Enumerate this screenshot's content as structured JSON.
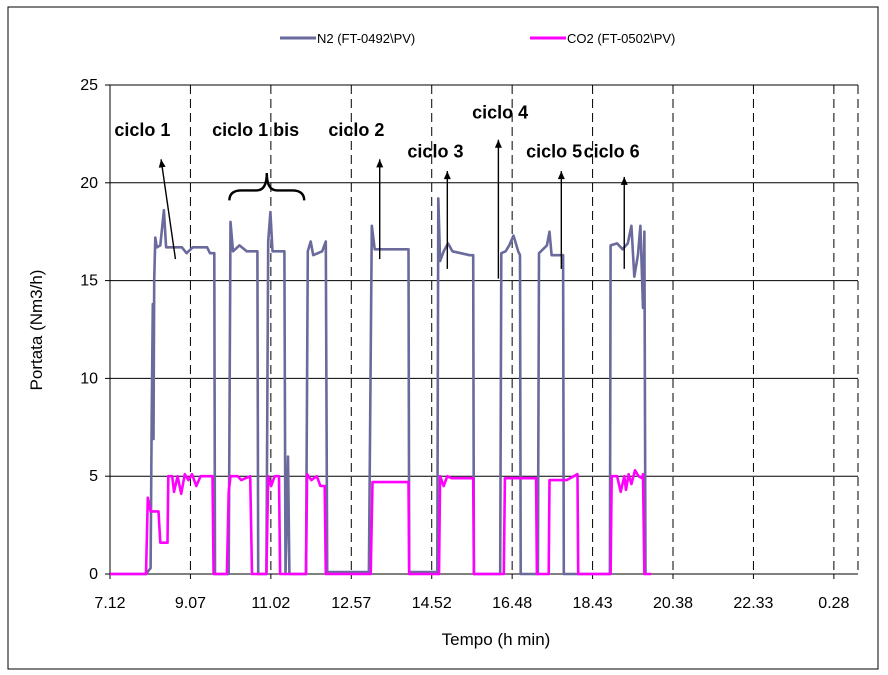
{
  "chart_data": {
    "type": "line",
    "xlabel": "Tempo (h min)",
    "ylabel": "Portata (Nm3/h)",
    "ylim": [
      0,
      25
    ],
    "xlim": [
      7.2,
      28.0
    ],
    "y_ticks": [
      0,
      5,
      10,
      15,
      20,
      25
    ],
    "x_ticks": [
      "7.12",
      "9.07",
      "11.02",
      "12.57",
      "14.52",
      "16.48",
      "18.43",
      "20.38",
      "22.33",
      "0.28"
    ],
    "grid": true,
    "legend_position": "top",
    "series": [
      {
        "name": "N2 (FT-0492\\PV)",
        "color": "#6a6a9c",
        "points": [
          [
            7.2,
            0
          ],
          [
            8.2,
            0
          ],
          [
            8.33,
            0.3
          ],
          [
            8.36,
            8
          ],
          [
            8.39,
            13.8
          ],
          [
            8.41,
            6.9
          ],
          [
            8.43,
            15
          ],
          [
            8.46,
            17.2
          ],
          [
            8.5,
            16.7
          ],
          [
            8.6,
            16.8
          ],
          [
            8.7,
            18.6
          ],
          [
            8.76,
            16.7
          ],
          [
            9.2,
            16.7
          ],
          [
            9.33,
            16.4
          ],
          [
            9.5,
            16.7
          ],
          [
            9.9,
            16.7
          ],
          [
            9.98,
            16.4
          ],
          [
            10.1,
            16.4
          ],
          [
            10.12,
            0
          ],
          [
            10.5,
            0
          ],
          [
            10.55,
            18
          ],
          [
            10.62,
            16.5
          ],
          [
            10.8,
            16.8
          ],
          [
            11.0,
            16.5
          ],
          [
            11.3,
            16.5
          ],
          [
            11.32,
            0
          ],
          [
            11.55,
            0
          ],
          [
            11.6,
            17
          ],
          [
            11.66,
            18.5
          ],
          [
            11.72,
            16.5
          ],
          [
            12.05,
            16.5
          ],
          [
            12.08,
            0
          ],
          [
            12.15,
            6
          ],
          [
            12.19,
            0
          ],
          [
            12.65,
            0
          ],
          [
            12.7,
            16.5
          ],
          [
            12.78,
            17
          ],
          [
            12.85,
            16.3
          ],
          [
            13.1,
            16.5
          ],
          [
            13.2,
            17
          ],
          [
            13.24,
            0.1
          ],
          [
            14.4,
            0.1
          ],
          [
            14.48,
            17.8
          ],
          [
            14.56,
            16.6
          ],
          [
            15.5,
            16.6
          ],
          [
            15.52,
            0.1
          ],
          [
            16.3,
            0.1
          ],
          [
            16.33,
            19.2
          ],
          [
            16.38,
            16.0
          ],
          [
            16.48,
            16.5
          ],
          [
            16.6,
            16.9
          ],
          [
            16.72,
            16.5
          ],
          [
            17.2,
            16.3
          ],
          [
            17.3,
            16.3
          ],
          [
            17.32,
            0
          ],
          [
            18.05,
            0
          ],
          [
            18.08,
            16.4
          ],
          [
            18.2,
            16.5
          ],
          [
            18.3,
            16.8
          ],
          [
            18.42,
            17.3
          ],
          [
            18.55,
            16.5
          ],
          [
            18.6,
            16.3
          ],
          [
            18.62,
            0
          ],
          [
            19.1,
            0
          ],
          [
            19.13,
            16.4
          ],
          [
            19.35,
            16.8
          ],
          [
            19.42,
            17.5
          ],
          [
            19.48,
            16.3
          ],
          [
            19.75,
            16.3
          ],
          [
            19.8,
            16.3
          ],
          [
            19.82,
            0
          ],
          [
            21.1,
            0
          ],
          [
            21.12,
            16.8
          ],
          [
            21.3,
            16.9
          ],
          [
            21.45,
            16.6
          ],
          [
            21.6,
            16.9
          ],
          [
            21.7,
            17.8
          ],
          [
            21.78,
            15.2
          ],
          [
            21.88,
            16.3
          ],
          [
            21.95,
            17.8
          ],
          [
            22.02,
            13.6
          ],
          [
            22.06,
            17.5
          ],
          [
            22.09,
            0
          ]
        ]
      },
      {
        "name": "CO2 (FT-0502\\PV)",
        "color": "#ff00ff",
        "points": [
          [
            7.2,
            0
          ],
          [
            8.2,
            0
          ],
          [
            8.25,
            3.9
          ],
          [
            8.33,
            3.2
          ],
          [
            8.55,
            3.2
          ],
          [
            8.6,
            1.6
          ],
          [
            8.8,
            1.6
          ],
          [
            8.82,
            5
          ],
          [
            8.93,
            5
          ],
          [
            8.98,
            4.2
          ],
          [
            9.08,
            5
          ],
          [
            9.18,
            4.1
          ],
          [
            9.28,
            5.1
          ],
          [
            9.38,
            4.8
          ],
          [
            9.48,
            5.1
          ],
          [
            9.6,
            4.5
          ],
          [
            9.72,
            5
          ],
          [
            10.05,
            5
          ],
          [
            10.08,
            0
          ],
          [
            10.45,
            0
          ],
          [
            10.5,
            4.2
          ],
          [
            10.55,
            5
          ],
          [
            10.75,
            5
          ],
          [
            10.85,
            4.8
          ],
          [
            11.1,
            5
          ],
          [
            11.15,
            0
          ],
          [
            11.55,
            0
          ],
          [
            11.6,
            5
          ],
          [
            11.68,
            4.5
          ],
          [
            11.78,
            5
          ],
          [
            11.9,
            5
          ],
          [
            11.93,
            0
          ],
          [
            12.65,
            0
          ],
          [
            12.68,
            5.1
          ],
          [
            12.8,
            4.8
          ],
          [
            12.95,
            5
          ],
          [
            13.05,
            4.5
          ],
          [
            13.17,
            4.5
          ],
          [
            13.2,
            0
          ],
          [
            14.45,
            0
          ],
          [
            14.5,
            4.7
          ],
          [
            15.5,
            4.7
          ],
          [
            15.52,
            0
          ],
          [
            16.35,
            0
          ],
          [
            16.38,
            5
          ],
          [
            16.48,
            4.5
          ],
          [
            16.58,
            5
          ],
          [
            16.7,
            4.9
          ],
          [
            17.3,
            4.9
          ],
          [
            17.32,
            0
          ],
          [
            18.15,
            0
          ],
          [
            18.18,
            4.9
          ],
          [
            19.05,
            4.9
          ],
          [
            19.07,
            0
          ],
          [
            19.4,
            0
          ],
          [
            19.42,
            4.8
          ],
          [
            19.9,
            4.8
          ],
          [
            20.2,
            5.1
          ],
          [
            20.22,
            0
          ],
          [
            21.12,
            0
          ],
          [
            21.15,
            5
          ],
          [
            21.3,
            5
          ],
          [
            21.4,
            4.2
          ],
          [
            21.5,
            5
          ],
          [
            21.55,
            4.3
          ],
          [
            21.62,
            5.1
          ],
          [
            21.7,
            4.6
          ],
          [
            21.8,
            5.3
          ],
          [
            21.9,
            5
          ],
          [
            22.0,
            4.9
          ],
          [
            22.02,
            5.1
          ],
          [
            22.06,
            0
          ],
          [
            22.25,
            0
          ]
        ]
      }
    ],
    "annotations": [
      {
        "text": "ciclo 1",
        "x": 8.1,
        "y": 22.4,
        "arrow": [
          [
            9.02,
            16.1
          ],
          [
            8.62,
            21.2
          ]
        ]
      },
      {
        "text": "ciclo 1 bis",
        "x": 11.25,
        "y": 22.4,
        "brace": [
          10.52,
          12.6,
          19.1,
          20.5
        ]
      },
      {
        "text": "ciclo 2",
        "x": 14.05,
        "y": 22.4,
        "arrow": [
          [
            14.7,
            16.1
          ],
          [
            14.7,
            21.2
          ]
        ]
      },
      {
        "text": "ciclo 3",
        "x": 16.25,
        "y": 21.3,
        "arrow": [
          [
            16.58,
            15.6
          ],
          [
            16.58,
            20.6
          ]
        ]
      },
      {
        "text": "ciclo 4",
        "x": 18.05,
        "y": 23.3,
        "arrow": [
          [
            18.0,
            15.1
          ],
          [
            18.0,
            22.2
          ]
        ]
      },
      {
        "text": "ciclo 5",
        "x": 19.55,
        "y": 21.3,
        "arrow": [
          [
            19.75,
            15.6
          ],
          [
            19.75,
            20.6
          ]
        ]
      },
      {
        "text": "ciclo 6",
        "x": 21.15,
        "y": 21.3,
        "arrow": [
          [
            21.5,
            15.6
          ],
          [
            21.5,
            20.3
          ]
        ]
      }
    ]
  }
}
